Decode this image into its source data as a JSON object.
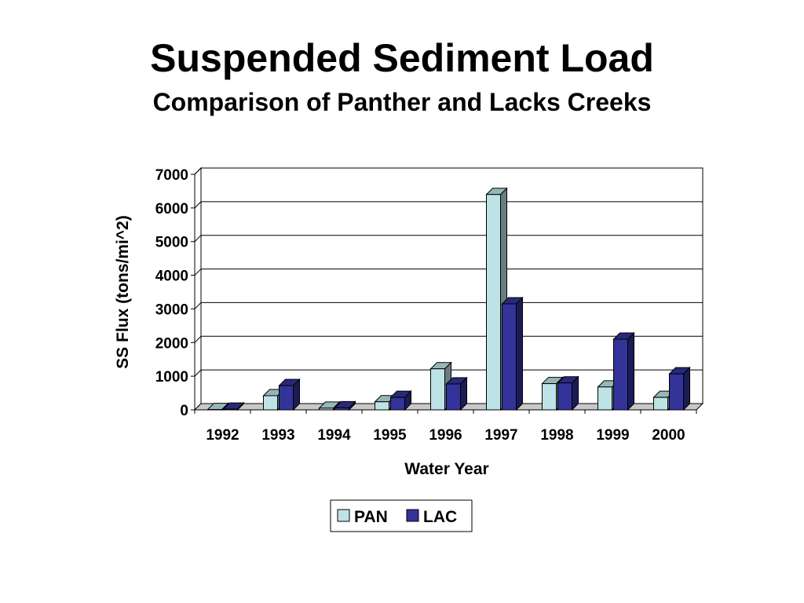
{
  "slide": {
    "title": "Suspended Sediment Load",
    "subtitle": "Comparison of Panther and Lacks Creeks"
  },
  "chart_data": {
    "type": "bar",
    "title": "Suspended Sediment Load",
    "subtitle": "Comparison of Panther and Lacks Creeks",
    "xlabel": "Water  Year",
    "ylabel": "SS Flux (tons/mi^2)",
    "categories": [
      "1992",
      "1993",
      "1994",
      "1995",
      "1996",
      "1997",
      "1998",
      "1999",
      "2000"
    ],
    "series": [
      {
        "name": "PAN",
        "color": "#bde3e6",
        "values": [
          10,
          420,
          50,
          240,
          1220,
          6400,
          780,
          680,
          370
        ]
      },
      {
        "name": "LAC",
        "color": "#33339a",
        "values": [
          20,
          720,
          60,
          370,
          770,
          3150,
          800,
          2100,
          1070
        ]
      }
    ],
    "ylim": [
      0,
      7000
    ],
    "yticks": [
      0,
      1000,
      2000,
      3000,
      4000,
      5000,
      6000,
      7000
    ],
    "grid": true,
    "legend_position": "bottom-center",
    "style": "3d-column"
  }
}
